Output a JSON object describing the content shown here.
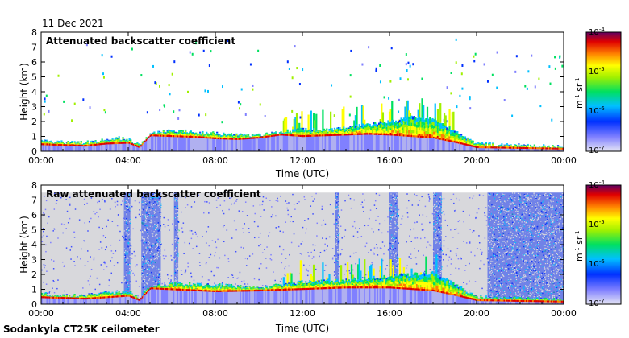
{
  "date_label": "11 Dec 2021",
  "footer_label": "Sodankyla CT25K ceilometer",
  "colors": {
    "background_top": "#ffffff",
    "background_raw": "#d8d8dc",
    "frame": "#000000"
  },
  "chart_data": [
    {
      "type": "heatmap",
      "title": "Attenuated backscatter coefficient",
      "xlabel": "Time (UTC)",
      "ylabel": "Height (km)",
      "x_ticks": [
        "00:00",
        "04:00",
        "08:00",
        "12:00",
        "16:00",
        "20:00",
        "00:00"
      ],
      "y_ticks": [
        "0",
        "1",
        "2",
        "3",
        "4",
        "5",
        "6",
        "7",
        "8"
      ],
      "xlim_hours": [
        0,
        24
      ],
      "ylim_km": [
        0,
        8
      ],
      "colorbar": {
        "label": "m-1 sr-1",
        "ticks": [
          "10-4",
          "10-5",
          "10-6",
          "10-7"
        ],
        "scale": "log",
        "range": [
          1e-07,
          0.0001
        ]
      },
      "cloud_top_km": [
        [
          0,
          0.7
        ],
        [
          1,
          0.6
        ],
        [
          2,
          0.6
        ],
        [
          3,
          0.8
        ],
        [
          3.5,
          0.9
        ],
        [
          4,
          0.8
        ],
        [
          4.5,
          0.4
        ],
        [
          5,
          1.2
        ],
        [
          6,
          1.4
        ],
        [
          7,
          1.3
        ],
        [
          8,
          1.2
        ],
        [
          9,
          1.1
        ],
        [
          10,
          1.1
        ],
        [
          11,
          1.3
        ],
        [
          12,
          1.5
        ],
        [
          13,
          1.4
        ],
        [
          14,
          1.6
        ],
        [
          15,
          1.8
        ],
        [
          16,
          2.0
        ],
        [
          17,
          2.3
        ],
        [
          18,
          2.2
        ],
        [
          19,
          1.3
        ],
        [
          20,
          0.5
        ],
        [
          22,
          0.4
        ],
        [
          24,
          0.3
        ]
      ],
      "cloud_base_km": [
        [
          0,
          0.45
        ],
        [
          1,
          0.4
        ],
        [
          2,
          0.35
        ],
        [
          3,
          0.5
        ],
        [
          4,
          0.55
        ],
        [
          4.5,
          0.25
        ],
        [
          5,
          1.05
        ],
        [
          6,
          1.0
        ],
        [
          7,
          0.95
        ],
        [
          8,
          0.85
        ],
        [
          9,
          0.8
        ],
        [
          10,
          0.9
        ],
        [
          11,
          1.1
        ],
        [
          12,
          1.0
        ],
        [
          13,
          1.05
        ],
        [
          14,
          1.1
        ],
        [
          15,
          1.15
        ],
        [
          16,
          1.1
        ],
        [
          17,
          1.0
        ],
        [
          18,
          0.9
        ],
        [
          19,
          0.6
        ],
        [
          20,
          0.25
        ],
        [
          22,
          0.2
        ],
        [
          24,
          0.15
        ]
      ],
      "noise_level": "low"
    },
    {
      "type": "heatmap",
      "title": "Raw attenuated backscatter coefficient",
      "xlabel": "Time (UTC)",
      "ylabel": "Height (km)",
      "x_ticks": [
        "00:00",
        "04:00",
        "08:00",
        "12:00",
        "16:00",
        "20:00",
        "00:00"
      ],
      "y_ticks": [
        "0",
        "1",
        "2",
        "3",
        "4",
        "5",
        "6",
        "7",
        "8"
      ],
      "xlim_hours": [
        0,
        24
      ],
      "ylim_km": [
        0,
        8
      ],
      "data_top_km": 7.5,
      "colorbar": {
        "label": "m-1 sr-1",
        "ticks": [
          "10-4",
          "10-5",
          "10-6",
          "10-7"
        ],
        "scale": "log",
        "range": [
          1e-07,
          0.0001
        ]
      },
      "noisy_columns_hours": [
        [
          3.8,
          4.1
        ],
        [
          4.6,
          5.5
        ],
        [
          6.1,
          6.3
        ],
        [
          13.5,
          13.7
        ],
        [
          16.0,
          16.4
        ],
        [
          18.0,
          18.4
        ],
        [
          20.5,
          24.0
        ]
      ],
      "cloud_top_km": [
        [
          0,
          0.7
        ],
        [
          1,
          0.6
        ],
        [
          2,
          0.6
        ],
        [
          3,
          0.8
        ],
        [
          4,
          0.8
        ],
        [
          4.5,
          0.4
        ],
        [
          5,
          1.2
        ],
        [
          6,
          1.4
        ],
        [
          8,
          1.3
        ],
        [
          10,
          1.1
        ],
        [
          12,
          1.5
        ],
        [
          14,
          1.6
        ],
        [
          16,
          1.9
        ],
        [
          18,
          2.1
        ],
        [
          19,
          1.3
        ],
        [
          20,
          0.5
        ],
        [
          24,
          0.3
        ]
      ],
      "cloud_base_km": [
        [
          0,
          0.45
        ],
        [
          2,
          0.35
        ],
        [
          4,
          0.55
        ],
        [
          4.5,
          0.25
        ],
        [
          5,
          1.05
        ],
        [
          8,
          0.85
        ],
        [
          10,
          0.9
        ],
        [
          12,
          1.0
        ],
        [
          14,
          1.1
        ],
        [
          16,
          1.1
        ],
        [
          18,
          0.9
        ],
        [
          19,
          0.6
        ],
        [
          20,
          0.25
        ],
        [
          24,
          0.15
        ]
      ],
      "noise_level": "high"
    }
  ]
}
